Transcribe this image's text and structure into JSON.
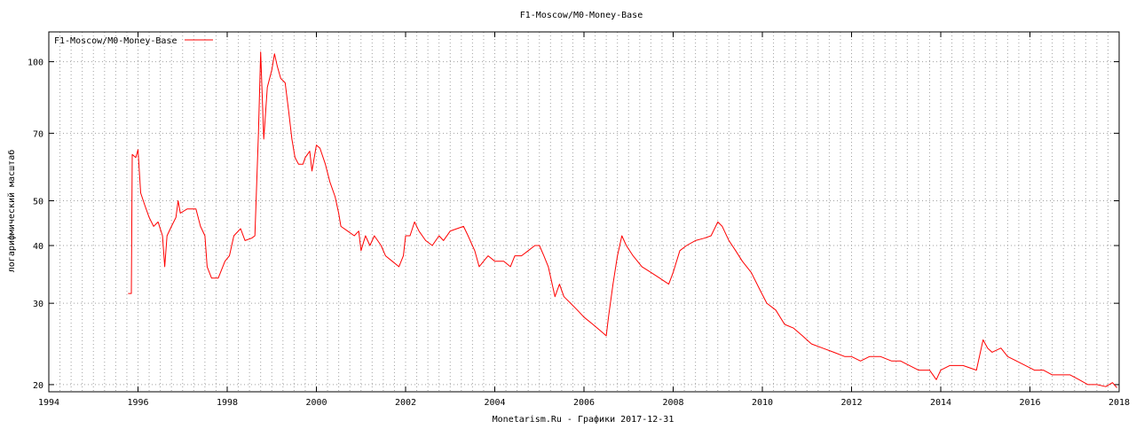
{
  "chart_data": {
    "type": "line",
    "title": "F1-Moscow/M0-Money-Base",
    "ylabel": "логарифмический масштаб",
    "xlabel": "Monetarism.Ru - Графики  2017-12-31",
    "y_scale": "log",
    "grid": true,
    "legend_position": "top-left",
    "xlim": [
      1994,
      2018
    ],
    "ylim": [
      19.3,
      116
    ],
    "x_ticks": [
      1994,
      1996,
      1998,
      2000,
      2002,
      2004,
      2006,
      2008,
      2010,
      2012,
      2014,
      2016,
      2018
    ],
    "y_ticks": [
      20,
      30,
      40,
      50,
      70,
      100
    ],
    "series": [
      {
        "name": "F1-Moscow/M0-Money-Base",
        "color": "#ff0000",
        "points": [
          [
            1995.78,
            31.5
          ],
          [
            1995.85,
            31.5
          ],
          [
            1995.87,
            63
          ],
          [
            1995.95,
            62
          ],
          [
            1996.0,
            64.5
          ],
          [
            1996.06,
            52
          ],
          [
            1996.15,
            49
          ],
          [
            1996.25,
            46
          ],
          [
            1996.35,
            44
          ],
          [
            1996.45,
            45
          ],
          [
            1996.55,
            42
          ],
          [
            1996.6,
            36
          ],
          [
            1996.65,
            42
          ],
          [
            1996.75,
            44
          ],
          [
            1996.85,
            46
          ],
          [
            1996.9,
            50
          ],
          [
            1996.95,
            47
          ],
          [
            1997.1,
            48
          ],
          [
            1997.3,
            48
          ],
          [
            1997.4,
            44
          ],
          [
            1997.5,
            42
          ],
          [
            1997.55,
            36
          ],
          [
            1997.65,
            34
          ],
          [
            1997.8,
            34
          ],
          [
            1997.95,
            37
          ],
          [
            1998.05,
            38
          ],
          [
            1998.15,
            42
          ],
          [
            1998.3,
            43.5
          ],
          [
            1998.4,
            41
          ],
          [
            1998.55,
            41.5
          ],
          [
            1998.62,
            42
          ],
          [
            1998.7,
            70
          ],
          [
            1998.75,
            105
          ],
          [
            1998.82,
            68
          ],
          [
            1998.9,
            88
          ],
          [
            1999.0,
            96
          ],
          [
            1999.06,
            104
          ],
          [
            1999.12,
            98
          ],
          [
            1999.2,
            92
          ],
          [
            1999.3,
            90
          ],
          [
            1999.38,
            78
          ],
          [
            1999.45,
            68
          ],
          [
            1999.52,
            62
          ],
          [
            1999.6,
            60
          ],
          [
            1999.7,
            60
          ],
          [
            1999.75,
            62
          ],
          [
            1999.85,
            64
          ],
          [
            1999.9,
            58
          ],
          [
            2000.0,
            66
          ],
          [
            2000.08,
            65
          ],
          [
            2000.2,
            60
          ],
          [
            2000.3,
            55
          ],
          [
            2000.42,
            51
          ],
          [
            2000.5,
            47
          ],
          [
            2000.55,
            44
          ],
          [
            2000.7,
            43
          ],
          [
            2000.85,
            42
          ],
          [
            2000.95,
            43
          ],
          [
            2001.0,
            39
          ],
          [
            2001.1,
            42
          ],
          [
            2001.2,
            40
          ],
          [
            2001.3,
            42
          ],
          [
            2001.45,
            40
          ],
          [
            2001.55,
            38
          ],
          [
            2001.7,
            37
          ],
          [
            2001.85,
            36
          ],
          [
            2001.95,
            38
          ],
          [
            2002.0,
            42
          ],
          [
            2002.1,
            42
          ],
          [
            2002.2,
            45
          ],
          [
            2002.3,
            43
          ],
          [
            2002.45,
            41
          ],
          [
            2002.6,
            40
          ],
          [
            2002.75,
            42
          ],
          [
            2002.85,
            41
          ],
          [
            2003.0,
            43
          ],
          [
            2003.15,
            43.5
          ],
          [
            2003.3,
            44
          ],
          [
            2003.4,
            42
          ],
          [
            2003.55,
            39
          ],
          [
            2003.65,
            36
          ],
          [
            2003.75,
            37
          ],
          [
            2003.85,
            38
          ],
          [
            2004.0,
            37
          ],
          [
            2004.2,
            37
          ],
          [
            2004.35,
            36
          ],
          [
            2004.45,
            38
          ],
          [
            2004.6,
            38
          ],
          [
            2004.75,
            39
          ],
          [
            2004.9,
            40
          ],
          [
            2005.0,
            40
          ],
          [
            2005.1,
            38
          ],
          [
            2005.2,
            36
          ],
          [
            2005.35,
            31
          ],
          [
            2005.45,
            33
          ],
          [
            2005.55,
            31
          ],
          [
            2005.7,
            30
          ],
          [
            2005.85,
            29
          ],
          [
            2006.0,
            28
          ],
          [
            2006.2,
            27
          ],
          [
            2006.4,
            26
          ],
          [
            2006.5,
            25.5
          ],
          [
            2006.55,
            28
          ],
          [
            2006.65,
            33
          ],
          [
            2006.75,
            38
          ],
          [
            2006.85,
            42
          ],
          [
            2006.95,
            40
          ],
          [
            2007.1,
            38
          ],
          [
            2007.3,
            36
          ],
          [
            2007.5,
            35
          ],
          [
            2007.7,
            34
          ],
          [
            2007.9,
            33
          ],
          [
            2008.0,
            35
          ],
          [
            2008.15,
            39
          ],
          [
            2008.3,
            40
          ],
          [
            2008.5,
            41
          ],
          [
            2008.7,
            41.5
          ],
          [
            2008.85,
            42
          ],
          [
            2009.0,
            45
          ],
          [
            2009.1,
            44
          ],
          [
            2009.25,
            41
          ],
          [
            2009.4,
            39
          ],
          [
            2009.55,
            37
          ],
          [
            2009.75,
            35
          ],
          [
            2009.95,
            32
          ],
          [
            2010.1,
            30
          ],
          [
            2010.3,
            29
          ],
          [
            2010.5,
            27
          ],
          [
            2010.7,
            26.5
          ],
          [
            2010.9,
            25.5
          ],
          [
            2011.1,
            24.5
          ],
          [
            2011.35,
            24
          ],
          [
            2011.6,
            23.5
          ],
          [
            2011.85,
            23
          ],
          [
            2012.0,
            23
          ],
          [
            2012.2,
            22.5
          ],
          [
            2012.4,
            23
          ],
          [
            2012.65,
            23
          ],
          [
            2012.9,
            22.5
          ],
          [
            2013.1,
            22.5
          ],
          [
            2013.3,
            22
          ],
          [
            2013.5,
            21.5
          ],
          [
            2013.75,
            21.5
          ],
          [
            2013.9,
            20.5
          ],
          [
            2014.0,
            21.5
          ],
          [
            2014.2,
            22
          ],
          [
            2014.5,
            22
          ],
          [
            2014.8,
            21.5
          ],
          [
            2014.95,
            25
          ],
          [
            2015.05,
            24
          ],
          [
            2015.15,
            23.5
          ],
          [
            2015.35,
            24
          ],
          [
            2015.5,
            23
          ],
          [
            2015.7,
            22.5
          ],
          [
            2015.9,
            22
          ],
          [
            2016.1,
            21.5
          ],
          [
            2016.3,
            21.5
          ],
          [
            2016.5,
            21
          ],
          [
            2016.7,
            21
          ],
          [
            2016.9,
            21
          ],
          [
            2017.1,
            20.5
          ],
          [
            2017.3,
            20
          ],
          [
            2017.5,
            20
          ],
          [
            2017.7,
            19.8
          ],
          [
            2017.85,
            20.2
          ],
          [
            2017.95,
            19.7
          ]
        ]
      }
    ]
  }
}
